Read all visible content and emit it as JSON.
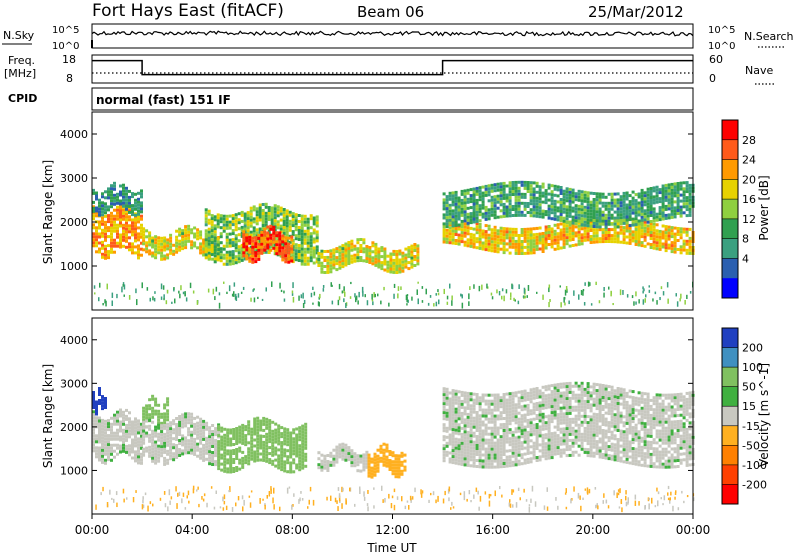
{
  "header": {
    "station": "Fort Hays East (fitACF)",
    "beam": "Beam 06",
    "date": "25/Mar/2012"
  },
  "noise_panel": {
    "left_label": "N.Sky",
    "right_label": "N.Search",
    "left_ticks": [
      "10^5",
      "10^0"
    ],
    "right_ticks": [
      "10^5",
      "10^0"
    ]
  },
  "freq_panel": {
    "left_label_1": "Freq.",
    "left_label_2": "[MHz]",
    "right_label": "Nave",
    "left_ticks": [
      "18",
      "8"
    ],
    "right_ticks": [
      "60",
      "0"
    ]
  },
  "cpid": {
    "label": "CPID",
    "value": "normal (fast) 151 IF"
  },
  "power_panel": {
    "ylabel": "Slant Range [km]",
    "colorbar_label": "Power [dB]",
    "colorbar_ticks": [
      "28",
      "24",
      "20",
      "16",
      "12",
      "8",
      "4"
    ],
    "colorbar_colors": [
      "#ff0000",
      "#ff5a1a",
      "#ff9a00",
      "#e6d200",
      "#8fd040",
      "#30a050",
      "#3aa080",
      "#2a5fb0",
      "#0000ff"
    ]
  },
  "velocity_panel": {
    "ylabel": "Slant Range [km]",
    "colorbar_label": "Velocity [m s^-1]",
    "colorbar_ticks": [
      "200",
      "100",
      "50",
      "15",
      "-15",
      "-50",
      "-100",
      "-200"
    ],
    "colorbar_colors": [
      "#2040c0",
      "#4090c0",
      "#80c060",
      "#40b040",
      "#c8c8c0",
      "#ffb020",
      "#ff8000",
      "#ff4000",
      "#ff0000"
    ]
  },
  "xaxis": {
    "label": "Time UT",
    "ticks": [
      "00:00",
      "04:00",
      "08:00",
      "12:00",
      "16:00",
      "20:00",
      "00:00"
    ]
  },
  "chart_data": [
    {
      "type": "line",
      "name": "noise",
      "x_hours": [
        0,
        4,
        8,
        12,
        16,
        20,
        24
      ],
      "series": [
        {
          "values": [
            4.2,
            4.0,
            3.9,
            3.8,
            3.8,
            3.7,
            3.7
          ]
        }
      ]
    },
    {
      "type": "line",
      "name": "frequency",
      "x_hours": [
        0,
        2.0,
        2.0,
        14.0,
        14.0,
        24
      ],
      "series": [
        {
          "values": [
            16,
            16,
            11,
            11,
            16,
            16
          ]
        }
      ],
      "ylim": [
        8,
        18
      ]
    },
    {
      "type": "heatmap",
      "name": "power",
      "xlim": [
        0,
        24
      ],
      "ylim": [
        0,
        4500
      ],
      "regions": [
        {
          "t0": 0.0,
          "t1": 2.0,
          "r0": 1300,
          "r1": 2300,
          "level": 22
        },
        {
          "t0": 0.0,
          "t1": 2.0,
          "r0": 2300,
          "r1": 2800,
          "level": 8
        },
        {
          "t0": 2.0,
          "t1": 5.0,
          "r0": 1300,
          "r1": 1800,
          "level": 18
        },
        {
          "t0": 4.5,
          "t1": 9.0,
          "r0": 1200,
          "r1": 2300,
          "level": 14
        },
        {
          "t0": 6.0,
          "t1": 8.0,
          "r0": 1200,
          "r1": 1800,
          "level": 26
        },
        {
          "t0": 9.0,
          "t1": 13.0,
          "r0": 1000,
          "r1": 1500,
          "level": 18
        },
        {
          "t0": 14.0,
          "t1": 24.0,
          "r0": 1400,
          "r1": 2000,
          "level": 20
        },
        {
          "t0": 14.0,
          "t1": 24.0,
          "r0": 2000,
          "r1": 2800,
          "level": 10
        }
      ]
    },
    {
      "type": "heatmap",
      "name": "velocity",
      "xlim": [
        0,
        24
      ],
      "ylim": [
        0,
        4500
      ],
      "regions": [
        {
          "t0": 0.0,
          "t1": 2.0,
          "r0": 1300,
          "r1": 2300,
          "level": 0
        },
        {
          "t0": 0.0,
          "t1": 0.5,
          "r0": 2400,
          "r1": 2800,
          "level": 200
        },
        {
          "t0": 2.0,
          "t1": 3.0,
          "r0": 2100,
          "r1": 2600,
          "level": 50
        },
        {
          "t0": 2.0,
          "t1": 5.0,
          "r0": 1300,
          "r1": 2200,
          "level": 0
        },
        {
          "t0": 5.0,
          "t1": 8.5,
          "r0": 1100,
          "r1": 2100,
          "level": 50
        },
        {
          "t0": 9.0,
          "t1": 11.0,
          "r0": 1100,
          "r1": 1500,
          "level": 0
        },
        {
          "t0": 11.0,
          "t1": 12.5,
          "r0": 1000,
          "r1": 1500,
          "level": -50
        },
        {
          "t0": 14.0,
          "t1": 24.0,
          "r0": 1200,
          "r1": 2900,
          "level": 0
        }
      ]
    }
  ]
}
